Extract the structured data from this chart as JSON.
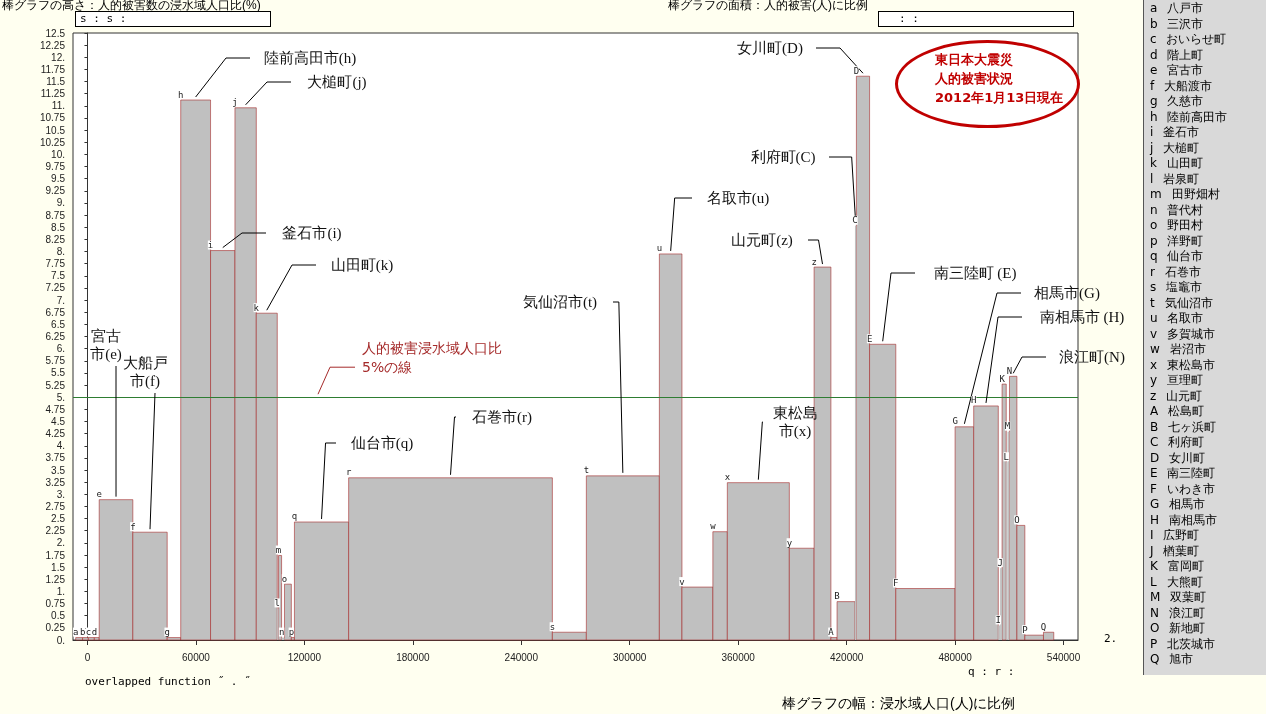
{
  "chart_data": {
    "type": "histogram",
    "title": "棒グラフの高さ：人的被害数の浸水域人口比(%)",
    "subtitle": "棒グラフの面積：人的被害(人)に比例",
    "xlabel": "棒グラフの幅：浸水域人口(人)に比例",
    "bins": [
      -6500,
      -2700,
      500,
      3800,
      6500,
      25100,
      44100,
      51600,
      68100,
      81600,
      93400,
      105000,
      105700,
      107400,
      109000,
      112800,
      114500,
      144500,
      257200,
      276000,
      316400,
      328900,
      346000,
      354000,
      388300,
      402000,
      411300,
      414700,
      424600,
      425400,
      432700,
      447200,
      480000,
      490300,
      503900,
      504900,
      506000,
      508300,
      509000,
      510100,
      514200,
      518600,
      528900,
      534600
    ],
    "values": [
      0.05,
      0.05,
      0.05,
      0.05,
      2.89,
      2.22,
      0.05,
      11.12,
      8.02,
      10.96,
      6.73,
      0.65,
      1.74,
      0.05,
      1.15,
      0.05,
      2.43,
      3.34,
      0.16,
      3.38,
      7.95,
      1.09,
      2.23,
      3.24,
      1.89,
      7.68,
      0.05,
      0.79,
      8.53,
      11.61,
      6.09,
      1.06,
      4.39,
      4.82,
      0.3,
      1.48,
      5.27,
      3.66,
      4.29,
      5.43,
      2.36,
      0.1,
      0.16
    ],
    "color": "#c0c0c0",
    "xlim": [
      -8000,
      548000
    ],
    "xticks": [
      0,
      60000,
      120000,
      180000,
      240000,
      300000,
      360000,
      420000,
      480000,
      540000
    ],
    "ylim": [
      0,
      12.5
    ],
    "yticks": [
      {
        "value": 0,
        "label": "0."
      },
      0.25,
      0.5,
      0.75,
      {
        "value": 1,
        "label": "1."
      },
      1.25,
      1.5,
      1.75,
      {
        "value": 2,
        "label": "2."
      },
      2.25,
      2.5,
      2.75,
      {
        "value": 3,
        "label": "3."
      },
      3.25,
      3.5,
      3.75,
      {
        "value": 4,
        "label": "4."
      },
      4.25,
      4.5,
      4.75,
      {
        "value": 5,
        "label": "5."
      },
      5.25,
      5.5,
      5.75,
      {
        "value": 6,
        "label": "6."
      },
      6.25,
      6.5,
      6.75,
      {
        "value": 7,
        "label": "7."
      },
      7.25,
      7.5,
      7.75,
      {
        "value": 8,
        "label": "8."
      },
      8.25,
      8.5,
      8.75,
      {
        "value": 9,
        "label": "9."
      },
      9.25,
      9.5,
      9.75,
      {
        "value": 10,
        "label": "10."
      },
      10.25,
      10.5,
      10.75,
      {
        "value": 11,
        "label": "11."
      },
      11.25,
      11.5,
      11.75,
      {
        "value": 12,
        "label": "12."
      },
      12.25,
      12.5
    ],
    "ref_lines": [
      {
        "axis": "y",
        "value": 5,
        "label": "人的被害浸水域人口比5%の線",
        "color": "#2e7d32"
      }
    ],
    "annotations": [
      {
        "text": "a",
        "x": -6500,
        "y": 0.05
      },
      {
        "text": "b",
        "x": -2700,
        "y": 0.05
      },
      {
        "text": "c",
        "x": 500,
        "y": 0.05
      },
      {
        "text": "d",
        "x": 3800,
        "y": 0.05
      },
      {
        "text": "e",
        "x": 6500,
        "y": 2.89
      },
      {
        "text": "f",
        "x": 25100,
        "y": 2.22
      },
      {
        "text": "g",
        "x": 44100,
        "y": 0.05
      },
      {
        "text": "h",
        "x": 51600,
        "y": 11.12
      },
      {
        "text": "i",
        "x": 68100,
        "y": 8.02
      },
      {
        "text": "j",
        "x": 81600,
        "y": 10.96
      },
      {
        "text": "k",
        "x": 93400,
        "y": 6.73
      },
      {
        "text": "l",
        "x": 105000,
        "y": 0.65
      },
      {
        "text": "m",
        "x": 105700,
        "y": 1.74
      },
      {
        "text": "n",
        "x": 107400,
        "y": 0.05
      },
      {
        "text": "o",
        "x": 109000,
        "y": 1.15
      },
      {
        "text": "p",
        "x": 112800,
        "y": 0.05
      },
      {
        "text": "q",
        "x": 114500,
        "y": 2.43
      },
      {
        "text": "r",
        "x": 144500,
        "y": 3.34
      },
      {
        "text": "s",
        "x": 257200,
        "y": 0.16
      },
      {
        "text": "t",
        "x": 276000,
        "y": 3.38
      },
      {
        "text": "u",
        "x": 316400,
        "y": 7.95
      },
      {
        "text": "v",
        "x": 328900,
        "y": 1.09
      },
      {
        "text": "w",
        "x": 346000,
        "y": 2.23
      },
      {
        "text": "x",
        "x": 354000,
        "y": 3.24
      },
      {
        "text": "y",
        "x": 388300,
        "y": 1.89
      },
      {
        "text": "z",
        "x": 402000,
        "y": 7.68
      },
      {
        "text": "A",
        "x": 411300,
        "y": 0.05
      },
      {
        "text": "B",
        "x": 414700,
        "y": 0.79
      },
      {
        "text": "C",
        "x": 424600,
        "y": 8.53
      },
      {
        "text": "D",
        "x": 425400,
        "y": 11.61
      },
      {
        "text": "E",
        "x": 432700,
        "y": 6.09
      },
      {
        "text": "F",
        "x": 447200,
        "y": 1.06
      },
      {
        "text": "G",
        "x": 480000,
        "y": 4.39
      },
      {
        "text": "H",
        "x": 490300,
        "y": 4.82
      },
      {
        "text": "I",
        "x": 503900,
        "y": 0.3
      },
      {
        "text": "J",
        "x": 504900,
        "y": 1.48
      },
      {
        "text": "K",
        "x": 506000,
        "y": 5.27
      },
      {
        "text": "L",
        "x": 508300,
        "y": 3.66
      },
      {
        "text": "M",
        "x": 509000,
        "y": 4.29
      },
      {
        "text": "N",
        "x": 510100,
        "y": 5.43
      },
      {
        "text": "O",
        "x": 514200,
        "y": 2.36
      },
      {
        "text": "P",
        "x": 518600,
        "y": 0.1
      },
      {
        "text": "Q",
        "x": 528900,
        "y": 0.16
      },
      {
        "text": "陸前高田市(h)",
        "x": 59850,
        "y": 11.12
      },
      {
        "text": "大槌町(j)",
        "x": 87500,
        "y": 10.96
      },
      {
        "text": "釜石市(i)",
        "x": 74850,
        "y": 8.02
      },
      {
        "text": "山田町(k)",
        "x": 99200,
        "y": 6.73
      },
      {
        "text": "宮古市(e)",
        "x": 15800,
        "y": 2.89
      },
      {
        "text": "大船戸市(f)",
        "x": 34600,
        "y": 2.22
      },
      {
        "text": "仙台市(q)",
        "x": 129500,
        "y": 2.43
      },
      {
        "text": "石巻市(r)",
        "x": 200850,
        "y": 3.34
      },
      {
        "text": "気仙沼市(t)",
        "x": 296200,
        "y": 3.38
      },
      {
        "text": "名取市(u)",
        "x": 322650,
        "y": 7.95
      },
      {
        "text": "山元町(z)",
        "x": 406650,
        "y": 7.68
      },
      {
        "text": "東松島市(x)",
        "x": 371150,
        "y": 3.24
      },
      {
        "text": "女川町(D)",
        "x": 429050,
        "y": 11.61
      },
      {
        "text": "利府町(C)",
        "x": 425000,
        "y": 8.53
      },
      {
        "text": "南三陸町 (E)",
        "x": 439950,
        "y": 6.09
      },
      {
        "text": "相馬市(G)",
        "x": 485150,
        "y": 4.39
      },
      {
        "text": "南相馬市 (H)",
        "x": 497100,
        "y": 4.82
      },
      {
        "text": "浪江町(N)",
        "x": 512150,
        "y": 5.43
      },
      "東日本大震災人的被害状況2012年1月13日現在",
      "a 八戸市",
      "b 三沢市",
      "c おいらせ町",
      "d 階上町",
      "e 宮古市",
      "f 大船渡市",
      "g 久慈市",
      "h 陸前高田市",
      "i 釜石市",
      "j 大槌町",
      "k 山田町",
      "l 岩泉町",
      "m 田野畑村",
      "n 普代村",
      "o 野田村",
      "p 洋野町",
      "q 仙台市",
      "r 石巻市",
      "s 塩竈市",
      "t 気仙沼市",
      "u 名取市",
      "v 多賀城市",
      "w 岩沼市",
      "x 東松島市",
      "y 亘理町",
      "z 山元町",
      "A 松島町",
      "B 七ヶ浜町",
      "C 利府町",
      "D 女川町",
      "E 南三陸町",
      "F いわき市",
      "G 相馬市",
      "H 南相馬市",
      "I 広野町",
      "J 楢葉町",
      "K 富岡町",
      "L 大熊町",
      "M 双葉町",
      "N 浪江町",
      "O 新地町",
      "P 北茨城市",
      "Q 旭市",
      "s : s :",
      ": :",
      "overlapped function ˝ . ˝",
      "q : r :",
      "2."
    ]
  }
}
